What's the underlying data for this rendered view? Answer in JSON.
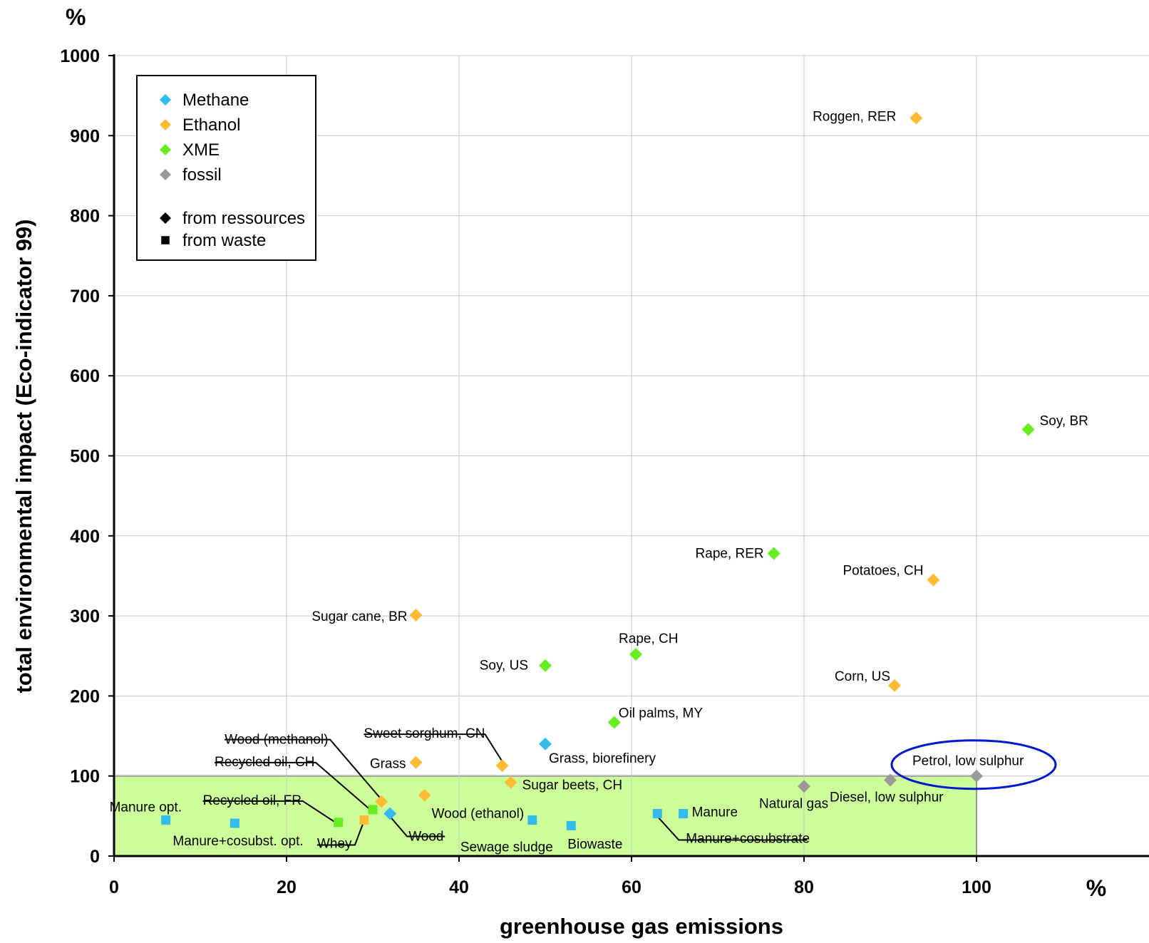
{
  "chart_data": {
    "type": "scatter",
    "xlabel": "greenhouse gas emissions",
    "ylabel": "total environmental impact (Eco-indicator 99)",
    "x_unit": "%",
    "y_unit": "%",
    "xlim": [
      0,
      120
    ],
    "ylim": [
      0,
      1000
    ],
    "x_ticks": [
      "0",
      "20",
      "40",
      "60",
      "80",
      "100"
    ],
    "y_ticks": [
      "0",
      "100",
      "200",
      "300",
      "400",
      "500",
      "600",
      "700",
      "800",
      "900",
      "1000"
    ],
    "grid": true,
    "legend_position": "top-left",
    "highlight_region": {
      "x": [
        0,
        100
      ],
      "y": [
        0,
        100
      ],
      "color": "#ccff99"
    },
    "categories": [
      {
        "name": "Methane",
        "color": "#33bbee"
      },
      {
        "name": "Ethanol",
        "color": "#ffbb33"
      },
      {
        "name": "XME",
        "color": "#66ee22"
      },
      {
        "name": "fossil",
        "color": "#999999"
      }
    ],
    "marker_legend": [
      {
        "name": "from ressources",
        "shape": "diamond"
      },
      {
        "name": "from waste",
        "shape": "square"
      }
    ],
    "points": [
      {
        "label": "Roggen, RER",
        "category": "Ethanol",
        "shape": "diamond",
        "x": 93,
        "y": 922
      },
      {
        "label": "Soy, BR",
        "category": "XME",
        "shape": "diamond",
        "x": 106,
        "y": 533
      },
      {
        "label": "Rape, RER",
        "category": "XME",
        "shape": "diamond",
        "x": 76.5,
        "y": 378
      },
      {
        "label": "Potatoes, CH",
        "category": "Ethanol",
        "shape": "diamond",
        "x": 95,
        "y": 345
      },
      {
        "label": "Sugar cane, BR",
        "category": "Ethanol",
        "shape": "diamond",
        "x": 35,
        "y": 301
      },
      {
        "label": "Rape, CH",
        "category": "XME",
        "shape": "diamond",
        "x": 60.5,
        "y": 252
      },
      {
        "label": "Soy, US",
        "category": "XME",
        "shape": "diamond",
        "x": 50,
        "y": 238
      },
      {
        "label": "Corn, US",
        "category": "Ethanol",
        "shape": "diamond",
        "x": 90.5,
        "y": 213
      },
      {
        "label": "Oil palms, MY",
        "category": "XME",
        "shape": "diamond",
        "x": 58,
        "y": 167
      },
      {
        "label": "Grass, biorefinery",
        "category": "Methane",
        "shape": "diamond",
        "x": 50,
        "y": 140
      },
      {
        "label": "Grass",
        "category": "Ethanol",
        "shape": "diamond",
        "x": 35,
        "y": 117
      },
      {
        "label": "Sweet sorghum, CN",
        "category": "Ethanol",
        "shape": "diamond",
        "x": 45,
        "y": 113
      },
      {
        "label": "Petrol, low sulphur",
        "category": "fossil",
        "shape": "diamond",
        "x": 100,
        "y": 100
      },
      {
        "label": "Diesel, low sulphur",
        "category": "fossil",
        "shape": "diamond",
        "x": 90,
        "y": 95
      },
      {
        "label": "Sugar beets, CH",
        "category": "Ethanol",
        "shape": "diamond",
        "x": 46,
        "y": 92
      },
      {
        "label": "Natural gas",
        "category": "fossil",
        "shape": "diamond",
        "x": 80,
        "y": 87
      },
      {
        "label": "Wood (ethanol)",
        "category": "Ethanol",
        "shape": "diamond",
        "x": 36,
        "y": 76
      },
      {
        "label": "Wood (methanol)",
        "category": "Ethanol",
        "shape": "diamond",
        "x": 31,
        "y": 68
      },
      {
        "label": "Recycled oil, CH",
        "category": "XME",
        "shape": "square",
        "x": 30,
        "y": 58
      },
      {
        "label": "Wood",
        "category": "Methane",
        "shape": "diamond",
        "x": 32,
        "y": 53
      },
      {
        "label": "Manure",
        "category": "Methane",
        "shape": "square",
        "x": 66,
        "y": 53
      },
      {
        "label": "Manure+cosubstrate",
        "category": "Methane",
        "shape": "square",
        "x": 63,
        "y": 53
      },
      {
        "label": "Manure opt.",
        "category": "Methane",
        "shape": "square",
        "x": 6,
        "y": 45
      },
      {
        "label": "Sewage sludge",
        "category": "Methane",
        "shape": "square",
        "x": 48.5,
        "y": 45
      },
      {
        "label": "Whey",
        "category": "Ethanol",
        "shape": "square",
        "x": 29,
        "y": 45
      },
      {
        "label": "Recycled oil, FR",
        "category": "XME",
        "shape": "square",
        "x": 26,
        "y": 42
      },
      {
        "label": "Manure+cosubst. opt.",
        "category": "Methane",
        "shape": "square",
        "x": 14,
        "y": 41
      },
      {
        "label": "Biowaste",
        "category": "Methane",
        "shape": "square",
        "x": 53,
        "y": 38
      }
    ]
  }
}
